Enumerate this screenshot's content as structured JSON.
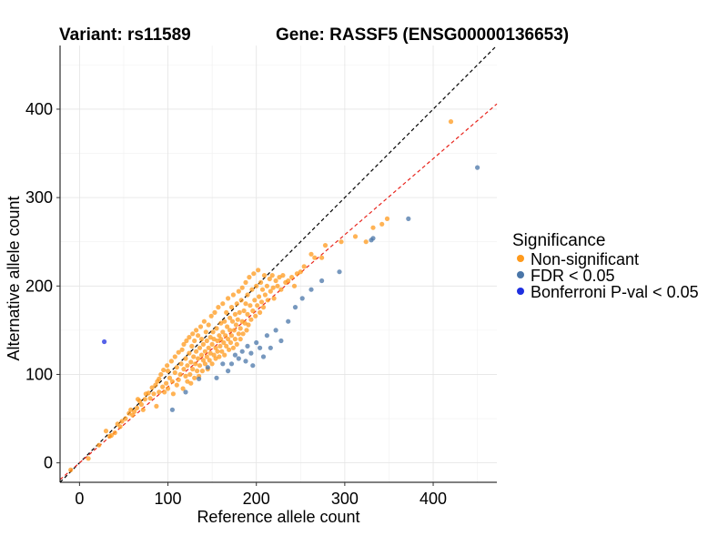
{
  "chart_data": {
    "type": "scatter",
    "title_left": "Variant: rs11589",
    "title_right": "Gene: RASSF5 (ENSG00000136653)",
    "xlabel": "Reference allele count",
    "ylabel": "Alternative allele count",
    "xlim": [
      -22,
      472
    ],
    "ylim": [
      -22,
      472
    ],
    "xticks": [
      0,
      100,
      200,
      300,
      400
    ],
    "yticks": [
      0,
      100,
      200,
      300,
      400
    ],
    "grid": true,
    "legend": {
      "title": "Significance",
      "position": "right",
      "entries": [
        {
          "label": "Non-significant",
          "color": "#FF9A1C"
        },
        {
          "label": "FDR < 0.05",
          "color": "#4A76A8"
        },
        {
          "label": "Bonferroni P-val < 0.05",
          "color": "#1E2FE0"
        }
      ]
    },
    "reference_lines": [
      {
        "name": "identity",
        "slope": 1.0,
        "intercept": 0,
        "color": "#000000",
        "style": "dashed"
      },
      {
        "name": "fit",
        "slope": 0.86,
        "intercept": 0,
        "color": "#E8241C",
        "style": "dashed"
      }
    ],
    "series": [
      {
        "name": "Non-significant",
        "color": "#FF9A1C",
        "points": [
          [
            -10,
            -8
          ],
          [
            10,
            5
          ],
          [
            22,
            20
          ],
          [
            30,
            36
          ],
          [
            34,
            30
          ],
          [
            36,
            31
          ],
          [
            40,
            34
          ],
          [
            43,
            44
          ],
          [
            46,
            41
          ],
          [
            48,
            47
          ],
          [
            52,
            50
          ],
          [
            56,
            56
          ],
          [
            58,
            60
          ],
          [
            60,
            54
          ],
          [
            62,
            58
          ],
          [
            65,
            62
          ],
          [
            66,
            72
          ],
          [
            68,
            70
          ],
          [
            70,
            66
          ],
          [
            72,
            60
          ],
          [
            74,
            72
          ],
          [
            75,
            78
          ],
          [
            78,
            79
          ],
          [
            80,
            73
          ],
          [
            82,
            85
          ],
          [
            84,
            78
          ],
          [
            86,
            88
          ],
          [
            87,
            64
          ],
          [
            88,
            92
          ],
          [
            90,
            80
          ],
          [
            90,
            95
          ],
          [
            92,
            100
          ],
          [
            94,
            86
          ],
          [
            95,
            105
          ],
          [
            96,
            80
          ],
          [
            98,
            90
          ],
          [
            99,
            110
          ],
          [
            100,
            104
          ],
          [
            100,
            84
          ],
          [
            102,
            96
          ],
          [
            104,
            115
          ],
          [
            105,
            92
          ],
          [
            106,
            78
          ],
          [
            108,
            102
          ],
          [
            108,
            120
          ],
          [
            110,
            88
          ],
          [
            110,
            108
          ],
          [
            112,
            94
          ],
          [
            112,
            125
          ],
          [
            114,
            100
          ],
          [
            115,
            112
          ],
          [
            116,
            128
          ],
          [
            117,
            84
          ],
          [
            118,
            106
          ],
          [
            118,
            134
          ],
          [
            120,
            98
          ],
          [
            120,
            118
          ],
          [
            121,
            138
          ],
          [
            122,
            92
          ],
          [
            122,
            110
          ],
          [
            124,
            124
          ],
          [
            124,
            142
          ],
          [
            125,
            100
          ],
          [
            126,
            114
          ],
          [
            126,
            90
          ],
          [
            127,
            132
          ],
          [
            128,
            146
          ],
          [
            128,
            106
          ],
          [
            129,
            120
          ],
          [
            130,
            96
          ],
          [
            130,
            138
          ],
          [
            131,
            112
          ],
          [
            132,
            150
          ],
          [
            132,
            126
          ],
          [
            133,
            104
          ],
          [
            134,
            118
          ],
          [
            134,
            144
          ],
          [
            135,
            98
          ],
          [
            136,
            130
          ],
          [
            136,
            110
          ],
          [
            137,
            154
          ],
          [
            138,
            122
          ],
          [
            138,
            140
          ],
          [
            139,
            104
          ],
          [
            140,
            116
          ],
          [
            140,
            134
          ],
          [
            141,
            160
          ],
          [
            142,
            126
          ],
          [
            142,
            112
          ],
          [
            143,
            148
          ],
          [
            144,
            120
          ],
          [
            144,
            138
          ],
          [
            145,
            106
          ],
          [
            146,
            130
          ],
          [
            146,
            156
          ],
          [
            147,
            116
          ],
          [
            148,
            142
          ],
          [
            148,
            124
          ],
          [
            149,
            166
          ],
          [
            150,
            134
          ],
          [
            150,
            112
          ],
          [
            151,
            148
          ],
          [
            152,
            122
          ],
          [
            152,
            140
          ],
          [
            153,
            170
          ],
          [
            154,
            130
          ],
          [
            154,
            118
          ],
          [
            155,
            152
          ],
          [
            156,
            138
          ],
          [
            156,
            126
          ],
          [
            157,
            176
          ],
          [
            158,
            144
          ],
          [
            158,
            120
          ],
          [
            159,
            132
          ],
          [
            160,
            158
          ],
          [
            160,
            140
          ],
          [
            161,
            126
          ],
          [
            162,
            180
          ],
          [
            162,
            148
          ],
          [
            163,
            136
          ],
          [
            164,
            160
          ],
          [
            164,
            122
          ],
          [
            165,
            144
          ],
          [
            166,
            170
          ],
          [
            166,
            132
          ],
          [
            167,
            154
          ],
          [
            168,
            140
          ],
          [
            168,
            186
          ],
          [
            169,
            128
          ],
          [
            170,
            164
          ],
          [
            170,
            150
          ],
          [
            171,
            136
          ],
          [
            172,
            176
          ],
          [
            172,
            144
          ],
          [
            173,
            160
          ],
          [
            174,
            130
          ],
          [
            174,
            190
          ],
          [
            175,
            150
          ],
          [
            176,
            168
          ],
          [
            176,
            140
          ],
          [
            177,
            156
          ],
          [
            178,
            180
          ],
          [
            178,
            134
          ],
          [
            179,
            162
          ],
          [
            180,
            146
          ],
          [
            180,
            194
          ],
          [
            181,
            170
          ],
          [
            182,
            152
          ],
          [
            182,
            140
          ],
          [
            183,
            184
          ],
          [
            184,
            160
          ],
          [
            184,
            198
          ],
          [
            185,
            146
          ],
          [
            186,
            172
          ],
          [
            187,
            158
          ],
          [
            188,
            204
          ],
          [
            188,
            180
          ],
          [
            189,
            150
          ],
          [
            190,
            168
          ],
          [
            190,
            190
          ],
          [
            191,
            156
          ],
          [
            192,
            210
          ],
          [
            193,
            178
          ],
          [
            194,
            162
          ],
          [
            195,
            196
          ],
          [
            196,
            172
          ],
          [
            197,
            214
          ],
          [
            198,
            184
          ],
          [
            199,
            166
          ],
          [
            200,
            200
          ],
          [
            201,
            178
          ],
          [
            202,
            218
          ],
          [
            203,
            188
          ],
          [
            204,
            170
          ],
          [
            205,
            204
          ],
          [
            206,
            182
          ],
          [
            207,
            196
          ],
          [
            208,
            176
          ],
          [
            209,
            212
          ],
          [
            210,
            190
          ],
          [
            212,
            200
          ],
          [
            213,
            184
          ],
          [
            215,
            208
          ],
          [
            216,
            194
          ],
          [
            218,
            212
          ],
          [
            219,
            198
          ],
          [
            220,
            186
          ],
          [
            222,
            206
          ],
          [
            224,
            200
          ],
          [
            226,
            210
          ],
          [
            228,
            196
          ],
          [
            230,
            212
          ],
          [
            233,
            204
          ],
          [
            236,
            206
          ],
          [
            240,
            210
          ],
          [
            243,
            200
          ],
          [
            246,
            214
          ],
          [
            250,
            216
          ],
          [
            254,
            222
          ],
          [
            262,
            236
          ],
          [
            266,
            232
          ],
          [
            274,
            232
          ],
          [
            278,
            246
          ],
          [
            296,
            250
          ],
          [
            312,
            256
          ],
          [
            324,
            250
          ],
          [
            332,
            266
          ],
          [
            342,
            270
          ],
          [
            348,
            276
          ],
          [
            420,
            386
          ]
        ]
      },
      {
        "name": "FDR < 0.05",
        "color": "#4A76A8",
        "points": [
          [
            105,
            60
          ],
          [
            120,
            80
          ],
          [
            135,
            95
          ],
          [
            145,
            108
          ],
          [
            155,
            96
          ],
          [
            162,
            112
          ],
          [
            168,
            104
          ],
          [
            172,
            112
          ],
          [
            176,
            122
          ],
          [
            180,
            118
          ],
          [
            184,
            126
          ],
          [
            188,
            115
          ],
          [
            190,
            132
          ],
          [
            194,
            124
          ],
          [
            196,
            110
          ],
          [
            200,
            136
          ],
          [
            204,
            130
          ],
          [
            208,
            120
          ],
          [
            212,
            144
          ],
          [
            216,
            130
          ],
          [
            222,
            150
          ],
          [
            228,
            138
          ],
          [
            236,
            160
          ],
          [
            244,
            176
          ],
          [
            252,
            186
          ],
          [
            262,
            196
          ],
          [
            274,
            206
          ],
          [
            294,
            216
          ],
          [
            330,
            252
          ],
          [
            332,
            254
          ],
          [
            372,
            276
          ],
          [
            450,
            334
          ]
        ]
      },
      {
        "name": "Bonferroni P-val < 0.05",
        "color": "#1E2FE0",
        "points": [
          [
            28,
            137
          ]
        ]
      }
    ]
  }
}
